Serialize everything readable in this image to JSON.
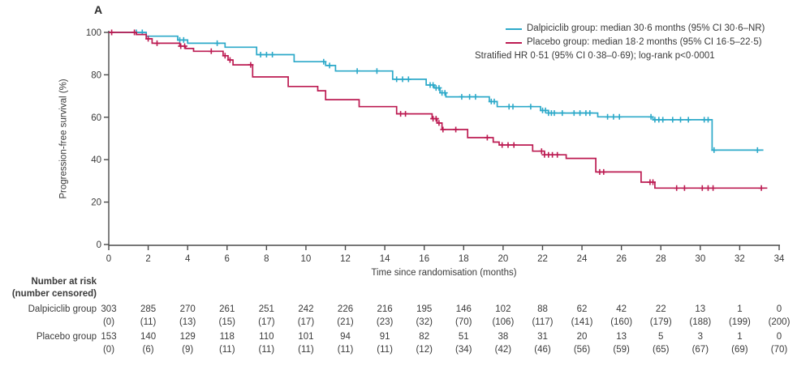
{
  "panel_label": "A",
  "chart_data": {
    "type": "line",
    "subtype": "kaplan-meier-step",
    "title": "A",
    "xlabel": "Time since randomisation (months)",
    "ylabel": "Progression-free survival (%)",
    "xlim": [
      0,
      34
    ],
    "ylim": [
      0,
      100
    ],
    "xticks": [
      0,
      2,
      4,
      6,
      8,
      10,
      12,
      14,
      16,
      18,
      20,
      22,
      24,
      26,
      28,
      30,
      32,
      34
    ],
    "yticks": [
      0,
      20,
      40,
      60,
      80,
      100
    ],
    "grid": false,
    "legend_position": "top-right",
    "annotation": "Stratified HR 0·51 (95% CI 0·38–0·69); log-rank p<0·0001",
    "axis_color": "#4a4a4a",
    "text_color": "#3a3a3a",
    "series": [
      {
        "name": "Dalpiciclib group",
        "legend_label": "Dalpiciclib group: median 30·6 months (95% CI 30·6–NR)",
        "color": "#2ca9c9",
        "steps": [
          [
            0,
            100
          ],
          [
            1.9,
            98.2
          ],
          [
            3.5,
            96.4
          ],
          [
            4.0,
            94.9
          ],
          [
            5.9,
            93.0
          ],
          [
            7.5,
            89.5
          ],
          [
            9.4,
            86.2
          ],
          [
            11.0,
            84.4
          ],
          [
            11.5,
            81.8
          ],
          [
            14.4,
            77.9
          ],
          [
            16.1,
            75.2
          ],
          [
            16.5,
            73.8
          ],
          [
            16.8,
            71.5
          ],
          [
            17.1,
            69.6
          ],
          [
            19.3,
            67.4
          ],
          [
            19.7,
            65.0
          ],
          [
            21.9,
            63.2
          ],
          [
            22.3,
            62.0
          ],
          [
            24.8,
            60.2
          ],
          [
            27.6,
            58.8
          ],
          [
            30.6,
            44.5
          ],
          [
            33.2,
            44.5
          ]
        ],
        "censor_times": [
          1.4,
          1.7,
          3.6,
          3.8,
          5.5,
          7.7,
          8.0,
          8.3,
          10.9,
          11.2,
          12.6,
          13.6,
          14.6,
          14.9,
          15.2,
          16.3,
          16.45,
          16.6,
          16.75,
          16.9,
          17.05,
          17.9,
          18.3,
          18.6,
          19.4,
          19.55,
          20.3,
          20.5,
          21.4,
          22.0,
          22.15,
          22.3,
          22.45,
          22.6,
          23.0,
          23.6,
          23.9,
          24.2,
          24.4,
          25.3,
          25.6,
          25.9,
          27.5,
          27.7,
          27.9,
          28.1,
          28.6,
          29.0,
          29.4,
          30.2,
          30.4,
          30.7,
          32.9
        ]
      },
      {
        "name": "Placebo group",
        "legend_label": "Placebo group: median 18·2 months (95% CI 16·5–22·5)",
        "color": "#bc1b52",
        "steps": [
          [
            0,
            100
          ],
          [
            1.4,
            99.0
          ],
          [
            1.9,
            97.0
          ],
          [
            2.2,
            94.9
          ],
          [
            3.6,
            93.5
          ],
          [
            3.9,
            92.4
          ],
          [
            4.3,
            91.1
          ],
          [
            5.8,
            89.0
          ],
          [
            6.05,
            87.0
          ],
          [
            6.3,
            84.7
          ],
          [
            7.3,
            79.0
          ],
          [
            9.1,
            74.5
          ],
          [
            10.6,
            72.5
          ],
          [
            11.0,
            68.3
          ],
          [
            12.7,
            65.0
          ],
          [
            14.6,
            61.6
          ],
          [
            16.4,
            59.3
          ],
          [
            16.65,
            57.3
          ],
          [
            16.9,
            54.2
          ],
          [
            18.2,
            50.4
          ],
          [
            19.5,
            48.3
          ],
          [
            19.8,
            46.9
          ],
          [
            21.5,
            44.0
          ],
          [
            22.1,
            42.3
          ],
          [
            23.2,
            40.6
          ],
          [
            24.7,
            34.2
          ],
          [
            27.0,
            29.4
          ],
          [
            27.7,
            26.6
          ],
          [
            33.4,
            26.6
          ]
        ],
        "censor_times": [
          0.15,
          1.3,
          2.0,
          2.45,
          3.65,
          3.85,
          5.2,
          5.9,
          6.15,
          7.2,
          14.8,
          15.05,
          16.45,
          16.6,
          16.75,
          16.95,
          17.6,
          19.2,
          19.95,
          20.25,
          20.55,
          21.95,
          22.1,
          22.3,
          22.5,
          22.75,
          24.9,
          25.1,
          27.45,
          27.6,
          28.8,
          29.2,
          30.1,
          30.4,
          30.65,
          33.1
        ]
      }
    ]
  },
  "risk_table": {
    "header_line1": "Number at risk",
    "header_line2": "(number censored)",
    "time_points": [
      0,
      2,
      4,
      6,
      8,
      10,
      12,
      14,
      16,
      18,
      20,
      22,
      24,
      26,
      28,
      30,
      32,
      34
    ],
    "rows": [
      {
        "label": "Dalpiciclib group",
        "at_risk": [
          "303",
          "285",
          "270",
          "261",
          "251",
          "242",
          "226",
          "216",
          "195",
          "146",
          "102",
          "88",
          "62",
          "42",
          "22",
          "13",
          "1",
          "0"
        ],
        "censored": [
          "(0)",
          "(11)",
          "(13)",
          "(15)",
          "(17)",
          "(17)",
          "(21)",
          "(23)",
          "(32)",
          "(70)",
          "(106)",
          "(117)",
          "(141)",
          "(160)",
          "(179)",
          "(188)",
          "(199)",
          "(200)"
        ]
      },
      {
        "label": "Placebo group",
        "at_risk": [
          "153",
          "140",
          "129",
          "118",
          "110",
          "101",
          "94",
          "91",
          "82",
          "51",
          "38",
          "31",
          "20",
          "13",
          "5",
          "3",
          "1",
          "0"
        ],
        "censored": [
          "(0)",
          "(6)",
          "(9)",
          "(11)",
          "(11)",
          "(11)",
          "(11)",
          "(11)",
          "(12)",
          "(34)",
          "(42)",
          "(46)",
          "(56)",
          "(59)",
          "(65)",
          "(67)",
          "(69)",
          "(70)"
        ]
      }
    ]
  }
}
